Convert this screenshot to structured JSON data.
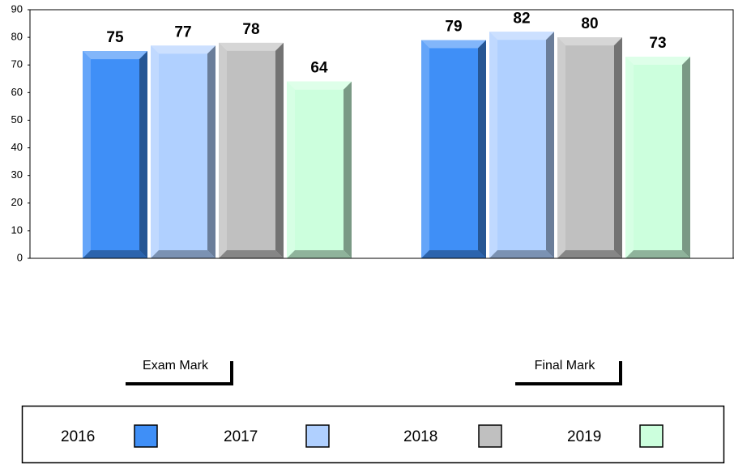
{
  "chart_data": {
    "type": "bar",
    "categories": [
      "Exam Mark",
      "Final Mark"
    ],
    "series": [
      {
        "name": "2016",
        "color": "#3f8ff7",
        "values": [
          75,
          79
        ]
      },
      {
        "name": "2017",
        "color": "#b0d0ff",
        "values": [
          77,
          82
        ]
      },
      {
        "name": "2018",
        "color": "#c0c0c0",
        "values": [
          78,
          80
        ]
      },
      {
        "name": "2019",
        "color": "#ccffdd",
        "values": [
          64,
          73
        ]
      }
    ],
    "ylim": [
      0,
      90
    ],
    "yticks": [
      0,
      10,
      20,
      30,
      40,
      50,
      60,
      70,
      80,
      90
    ],
    "grid": false,
    "legend": "bottom"
  }
}
